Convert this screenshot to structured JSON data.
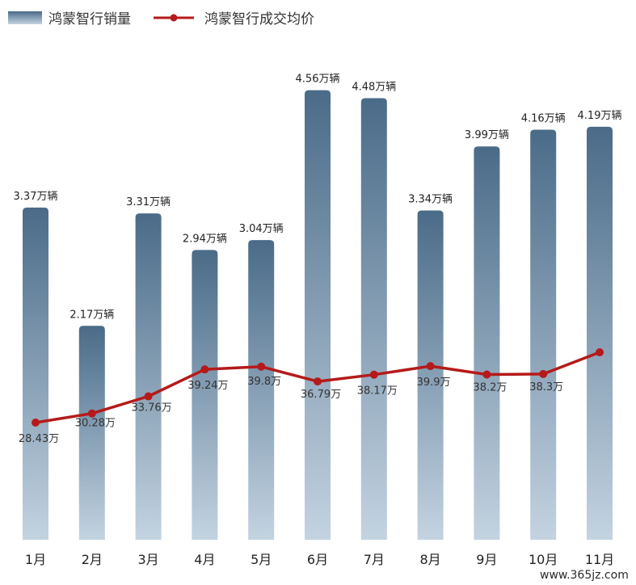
{
  "chart_data": {
    "type": "bar",
    "categories": [
      "1月",
      "2月",
      "3月",
      "4月",
      "5月",
      "6月",
      "7月",
      "8月",
      "9月",
      "10月",
      "11月"
    ],
    "series": [
      {
        "name": "鸿蒙智行销量",
        "type": "bar",
        "values": [
          3.37,
          2.17,
          3.31,
          2.94,
          3.04,
          4.56,
          4.48,
          3.34,
          3.99,
          4.16,
          4.19
        ],
        "labels": [
          "3.37万辆",
          "2.17万辆",
          "3.31万辆",
          "2.94万辆",
          "3.04万辆",
          "4.56万辆",
          "4.48万辆",
          "3.34万辆",
          "3.99万辆",
          "4.16万辆",
          "4.19万辆"
        ]
      },
      {
        "name": "鸿蒙智行成交均价",
        "type": "line",
        "values": [
          28.43,
          30.28,
          33.76,
          39.24,
          39.8,
          36.79,
          38.17,
          39.9,
          38.2,
          38.3,
          null
        ],
        "labels": [
          "28.43万",
          "30.28万",
          "33.76万",
          "39.24万",
          "39.8万",
          "36.79万",
          "38.17万",
          "39.9万",
          "38.2万",
          "38.3万",
          ""
        ]
      }
    ],
    "legend_position": "top-left",
    "grid": false,
    "colors": {
      "bar_top": "#4a6b88",
      "bar_bottom": "#c3d3e1",
      "line": "#b51a1a"
    }
  },
  "watermark": "www.365jz.com"
}
